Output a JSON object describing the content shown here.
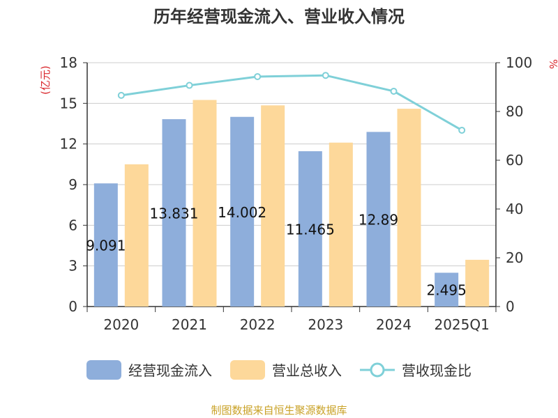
{
  "title": "历年经营现金流入、营业收入情况",
  "source": "制图数据来自恒生聚源数据库",
  "colors": {
    "series1": "#8eaedb",
    "series2": "#fdd89a",
    "series3": "#7fd0d8",
    "axis_unit_left": "#d9262b",
    "axis_unit_right": "#d9262b",
    "source": "#c9a227"
  },
  "chart_data": {
    "type": "bar",
    "categories": [
      "2020",
      "2021",
      "2022",
      "2023",
      "2024",
      "2025Q1"
    ],
    "y_left": {
      "unit": "(亿元)",
      "ticks": [
        "0",
        "3",
        "6",
        "9",
        "12",
        "15",
        "18"
      ],
      "ylim": [
        0,
        18
      ]
    },
    "y_right": {
      "unit": "%",
      "ticks": [
        "0",
        "20",
        "40",
        "60",
        "80",
        "100"
      ],
      "ylim": [
        0,
        100
      ]
    },
    "grid": true,
    "legend_position": "bottom",
    "series": [
      {
        "name": "经营现金流入",
        "axis": "left",
        "type": "bar",
        "values": [
          9.091,
          13.831,
          14.002,
          11.465,
          12.89,
          2.495
        ],
        "labels": [
          "9.091",
          "13.831",
          "14.002",
          "11.465",
          "12.89",
          "2.495"
        ]
      },
      {
        "name": "营业总收入",
        "axis": "left",
        "type": "bar",
        "values": [
          10.5,
          15.25,
          14.85,
          12.1,
          14.6,
          3.45
        ]
      },
      {
        "name": "营收现金比",
        "axis": "right",
        "type": "line",
        "values": [
          86.6,
          90.7,
          94.3,
          94.8,
          88.3,
          72.3
        ]
      }
    ]
  }
}
